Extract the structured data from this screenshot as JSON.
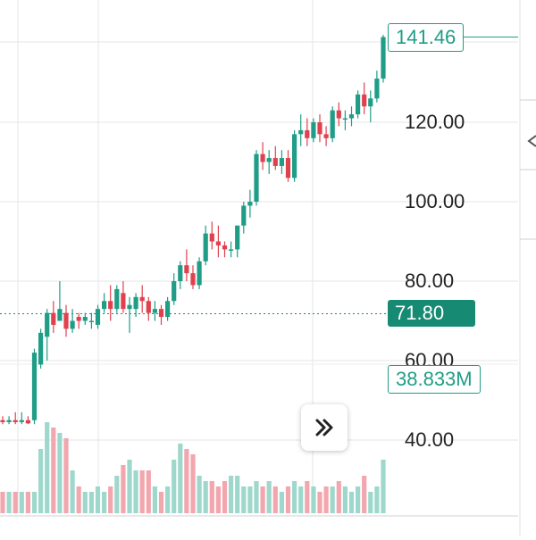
{
  "chart_data": {
    "type": "candlestick",
    "y_axis": {
      "ticks": [
        40,
        60,
        80,
        100,
        120
      ],
      "tick_labels": [
        "40.00",
        "60.00",
        "80.00",
        "100.00",
        "120.00"
      ],
      "range": [
        32,
        146
      ]
    },
    "last_price": {
      "value": 141.46,
      "label": "141.46"
    },
    "reference_price": {
      "value": 71.8,
      "label": "71.80"
    },
    "last_volume": {
      "label": "38.833M"
    },
    "colors": {
      "up": "#1f9d87",
      "down": "#e0414f",
      "vol_up": "#9ed8cc",
      "vol_down": "#f2a6ae",
      "grid": "#e6e6e6"
    },
    "candles": [
      {
        "o": 45,
        "h": 46,
        "l": 44,
        "c": 45
      },
      {
        "o": 45,
        "h": 46,
        "l": 44,
        "c": 44.5
      },
      {
        "o": 44.5,
        "h": 46,
        "l": 44,
        "c": 45
      },
      {
        "o": 45,
        "h": 47,
        "l": 44,
        "c": 44.5
      },
      {
        "o": 44.5,
        "h": 47,
        "l": 44,
        "c": 45
      },
      {
        "o": 45,
        "h": 46,
        "l": 44,
        "c": 44.2
      },
      {
        "o": 45,
        "h": 63,
        "l": 44,
        "c": 62
      },
      {
        "o": 59,
        "h": 68,
        "l": 58,
        "c": 67
      },
      {
        "o": 66,
        "h": 73,
        "l": 60,
        "c": 72
      },
      {
        "o": 72,
        "h": 75,
        "l": 67,
        "c": 69
      },
      {
        "o": 70,
        "h": 80,
        "l": 70,
        "c": 73
      },
      {
        "o": 72,
        "h": 74,
        "l": 66,
        "c": 68
      },
      {
        "o": 68,
        "h": 73,
        "l": 67,
        "c": 70
      },
      {
        "o": 71,
        "h": 72,
        "l": 68,
        "c": 70
      },
      {
        "o": 70,
        "h": 72,
        "l": 69,
        "c": 71
      },
      {
        "o": 70,
        "h": 72,
        "l": 68,
        "c": 70
      },
      {
        "o": 69,
        "h": 74,
        "l": 68,
        "c": 73
      },
      {
        "o": 73,
        "h": 77,
        "l": 72,
        "c": 75
      },
      {
        "o": 75,
        "h": 79,
        "l": 70,
        "c": 73
      },
      {
        "o": 73,
        "h": 79,
        "l": 72,
        "c": 78
      },
      {
        "o": 77,
        "h": 80,
        "l": 72,
        "c": 73
      },
      {
        "o": 73,
        "h": 76,
        "l": 67,
        "c": 74
      },
      {
        "o": 73,
        "h": 77,
        "l": 71,
        "c": 76
      },
      {
        "o": 76,
        "h": 79,
        "l": 72,
        "c": 75
      },
      {
        "o": 75,
        "h": 76,
        "l": 70,
        "c": 72
      },
      {
        "o": 72,
        "h": 75,
        "l": 70,
        "c": 73
      },
      {
        "o": 73,
        "h": 74,
        "l": 69,
        "c": 71
      },
      {
        "o": 71,
        "h": 76,
        "l": 70,
        "c": 75
      },
      {
        "o": 75,
        "h": 82,
        "l": 74,
        "c": 80
      },
      {
        "o": 80,
        "h": 85,
        "l": 78,
        "c": 84
      },
      {
        "o": 84,
        "h": 88,
        "l": 80,
        "c": 82
      },
      {
        "o": 82,
        "h": 84,
        "l": 78,
        "c": 79
      },
      {
        "o": 79,
        "h": 86,
        "l": 78,
        "c": 85
      },
      {
        "o": 85,
        "h": 94,
        "l": 84,
        "c": 92
      },
      {
        "o": 92,
        "h": 95,
        "l": 88,
        "c": 90
      },
      {
        "o": 90,
        "h": 94,
        "l": 86,
        "c": 89
      },
      {
        "o": 89,
        "h": 90,
        "l": 86,
        "c": 88
      },
      {
        "o": 88,
        "h": 90,
        "l": 86,
        "c": 88
      },
      {
        "o": 88,
        "h": 94,
        "l": 86,
        "c": 94
      },
      {
        "o": 94,
        "h": 100,
        "l": 92,
        "c": 99
      },
      {
        "o": 99,
        "h": 103,
        "l": 96,
        "c": 100
      },
      {
        "o": 100,
        "h": 113,
        "l": 99,
        "c": 112
      },
      {
        "o": 112,
        "h": 115,
        "l": 108,
        "c": 110
      },
      {
        "o": 110,
        "h": 113,
        "l": 107,
        "c": 111
      },
      {
        "o": 111,
        "h": 114,
        "l": 108,
        "c": 109
      },
      {
        "o": 109,
        "h": 113,
        "l": 107,
        "c": 111
      },
      {
        "o": 111,
        "h": 113,
        "l": 105,
        "c": 106
      },
      {
        "o": 106,
        "h": 118,
        "l": 105,
        "c": 117
      },
      {
        "o": 117,
        "h": 122,
        "l": 114,
        "c": 118
      },
      {
        "o": 118,
        "h": 121,
        "l": 114,
        "c": 116
      },
      {
        "o": 116,
        "h": 121,
        "l": 115,
        "c": 120
      },
      {
        "o": 120,
        "h": 122,
        "l": 115,
        "c": 117
      },
      {
        "o": 117,
        "h": 119,
        "l": 114,
        "c": 116
      },
      {
        "o": 116,
        "h": 124,
        "l": 115,
        "c": 123
      },
      {
        "o": 123,
        "h": 125,
        "l": 119,
        "c": 121
      },
      {
        "o": 121,
        "h": 123,
        "l": 118,
        "c": 121
      },
      {
        "o": 121,
        "h": 124,
        "l": 119,
        "c": 122
      },
      {
        "o": 122,
        "h": 128,
        "l": 121,
        "c": 127
      },
      {
        "o": 127,
        "h": 130,
        "l": 122,
        "c": 124
      },
      {
        "o": 124,
        "h": 128,
        "l": 120,
        "c": 126
      },
      {
        "o": 126,
        "h": 133,
        "l": 125,
        "c": 131
      },
      {
        "o": 131,
        "h": 142,
        "l": 130,
        "c": 141.46
      }
    ],
    "volumes": [
      5,
      4,
      4,
      4,
      4,
      4,
      4,
      12,
      17,
      16,
      15,
      14,
      8,
      5,
      4,
      4,
      5,
      4,
      5,
      7,
      9,
      10,
      8,
      8,
      8,
      5,
      4,
      5,
      10,
      13,
      12,
      11,
      7,
      6,
      6,
      5,
      6,
      7,
      7,
      5,
      5,
      6,
      5,
      6,
      5,
      4,
      5,
      6,
      5,
      6,
      5,
      4,
      5,
      5,
      6,
      5,
      4,
      5,
      7,
      4,
      5,
      10
    ]
  }
}
